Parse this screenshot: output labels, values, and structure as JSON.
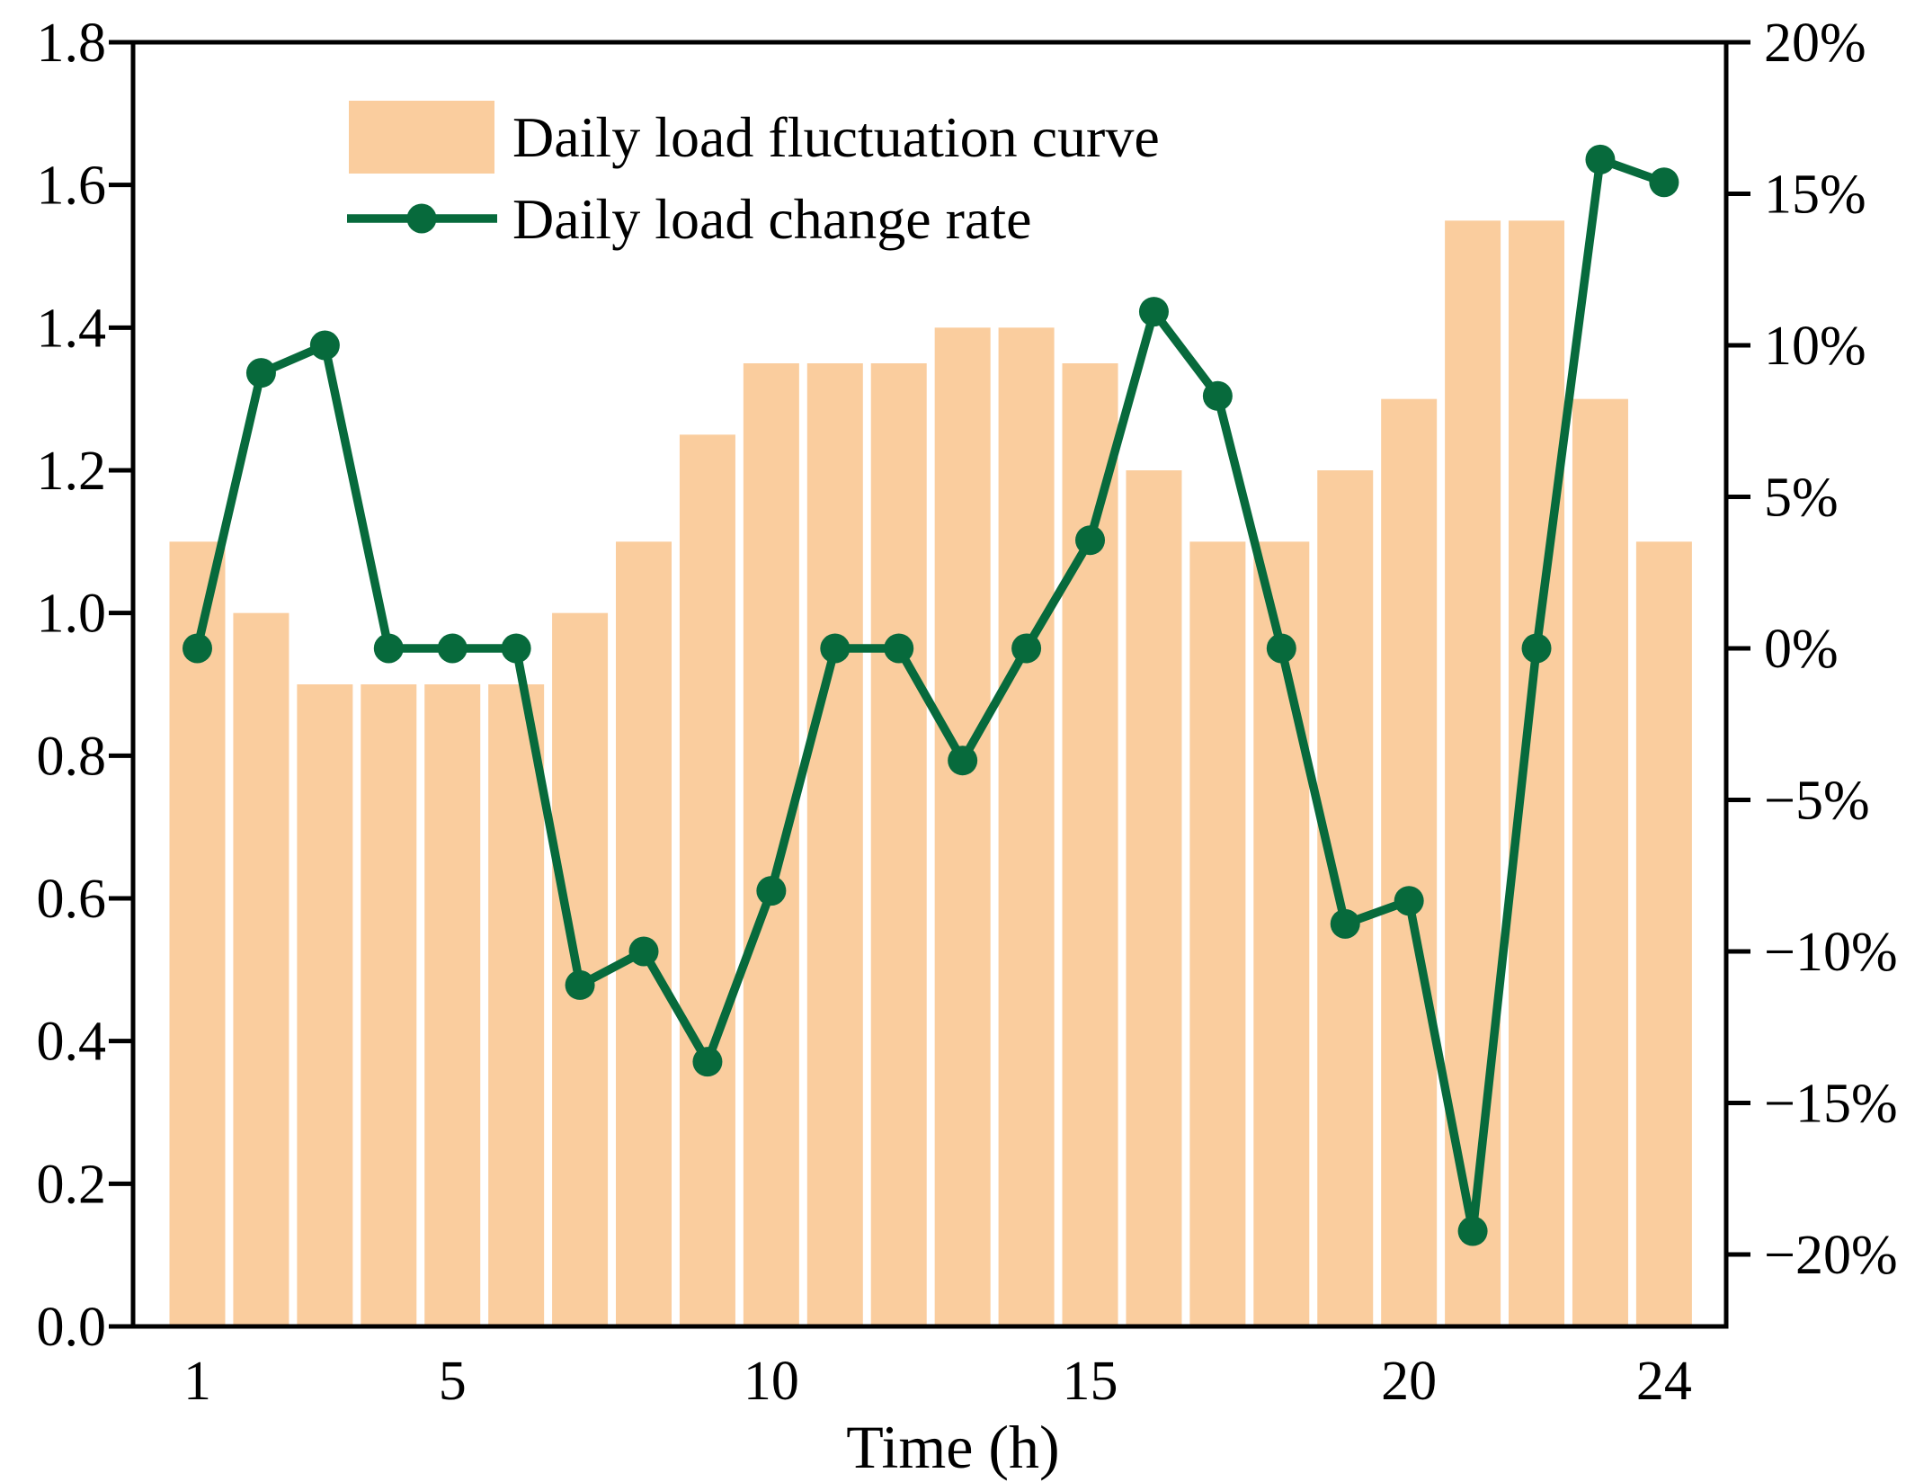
{
  "figure": {
    "xlabel": "Time (h)"
  },
  "legend": {
    "position": "upper left",
    "items": [
      {
        "label": "Daily load fluctuation curve",
        "swatch": "bar"
      },
      {
        "label": "Daily load change rate",
        "swatch": "line-marker"
      }
    ]
  },
  "colors": {
    "bar_fill": "#FACD9E",
    "line_green": "#076A3C",
    "axis": "#000000",
    "background": "#FFFFFF"
  },
  "chart_data": {
    "type": "combo",
    "title": "",
    "xlabel": "Time (h)",
    "grid": false,
    "legend_position": "upper left",
    "x": [
      1,
      2,
      3,
      4,
      5,
      6,
      7,
      8,
      9,
      10,
      11,
      12,
      13,
      14,
      15,
      16,
      17,
      18,
      19,
      20,
      21,
      22,
      23,
      24
    ],
    "series": [
      {
        "name": "Daily load fluctuation curve",
        "type": "bar",
        "axis": "left",
        "values": [
          1.1,
          1.0,
          0.9,
          0.9,
          0.9,
          0.9,
          1.0,
          1.1,
          1.25,
          1.35,
          1.35,
          1.35,
          1.4,
          1.4,
          1.35,
          1.2,
          1.1,
          1.1,
          1.2,
          1.3,
          1.55,
          1.55,
          1.3,
          1.1
        ]
      },
      {
        "name": "Daily load change rate",
        "type": "line",
        "axis": "right",
        "unit": "%",
        "values": [
          0,
          9.09,
          10.0,
          0,
          0,
          0,
          -11.11,
          -10.0,
          -13.64,
          -8.0,
          0,
          0,
          -3.7,
          0,
          3.57,
          11.11,
          8.33,
          0,
          -9.09,
          -8.33,
          -19.23,
          0,
          16.13,
          15.38
        ]
      }
    ],
    "left_axis": {
      "min": 0.0,
      "max": 1.8,
      "tick_values": [
        0.0,
        0.2,
        0.4,
        0.6,
        0.8,
        1.0,
        1.2,
        1.4,
        1.6,
        1.8
      ],
      "tick_labels": [
        "0.0",
        "0.2",
        "0.4",
        "0.6",
        "0.8",
        "1.0",
        "1.2",
        "1.4",
        "1.6",
        "1.8"
      ]
    },
    "right_axis": {
      "min": -20,
      "max": 20,
      "tick_values": [
        20,
        15,
        10,
        5,
        0,
        -5,
        -10,
        -15,
        -20
      ],
      "tick_labels": [
        "20%",
        "15%",
        "10%",
        "5%",
        "0%",
        "−5%",
        "−10%",
        "−15%",
        "−20%"
      ]
    },
    "x_axis": {
      "tick_values": [
        1,
        5,
        10,
        15,
        20,
        24
      ],
      "tick_labels": [
        "1",
        "5",
        "10",
        "15",
        "20",
        "24"
      ]
    }
  }
}
